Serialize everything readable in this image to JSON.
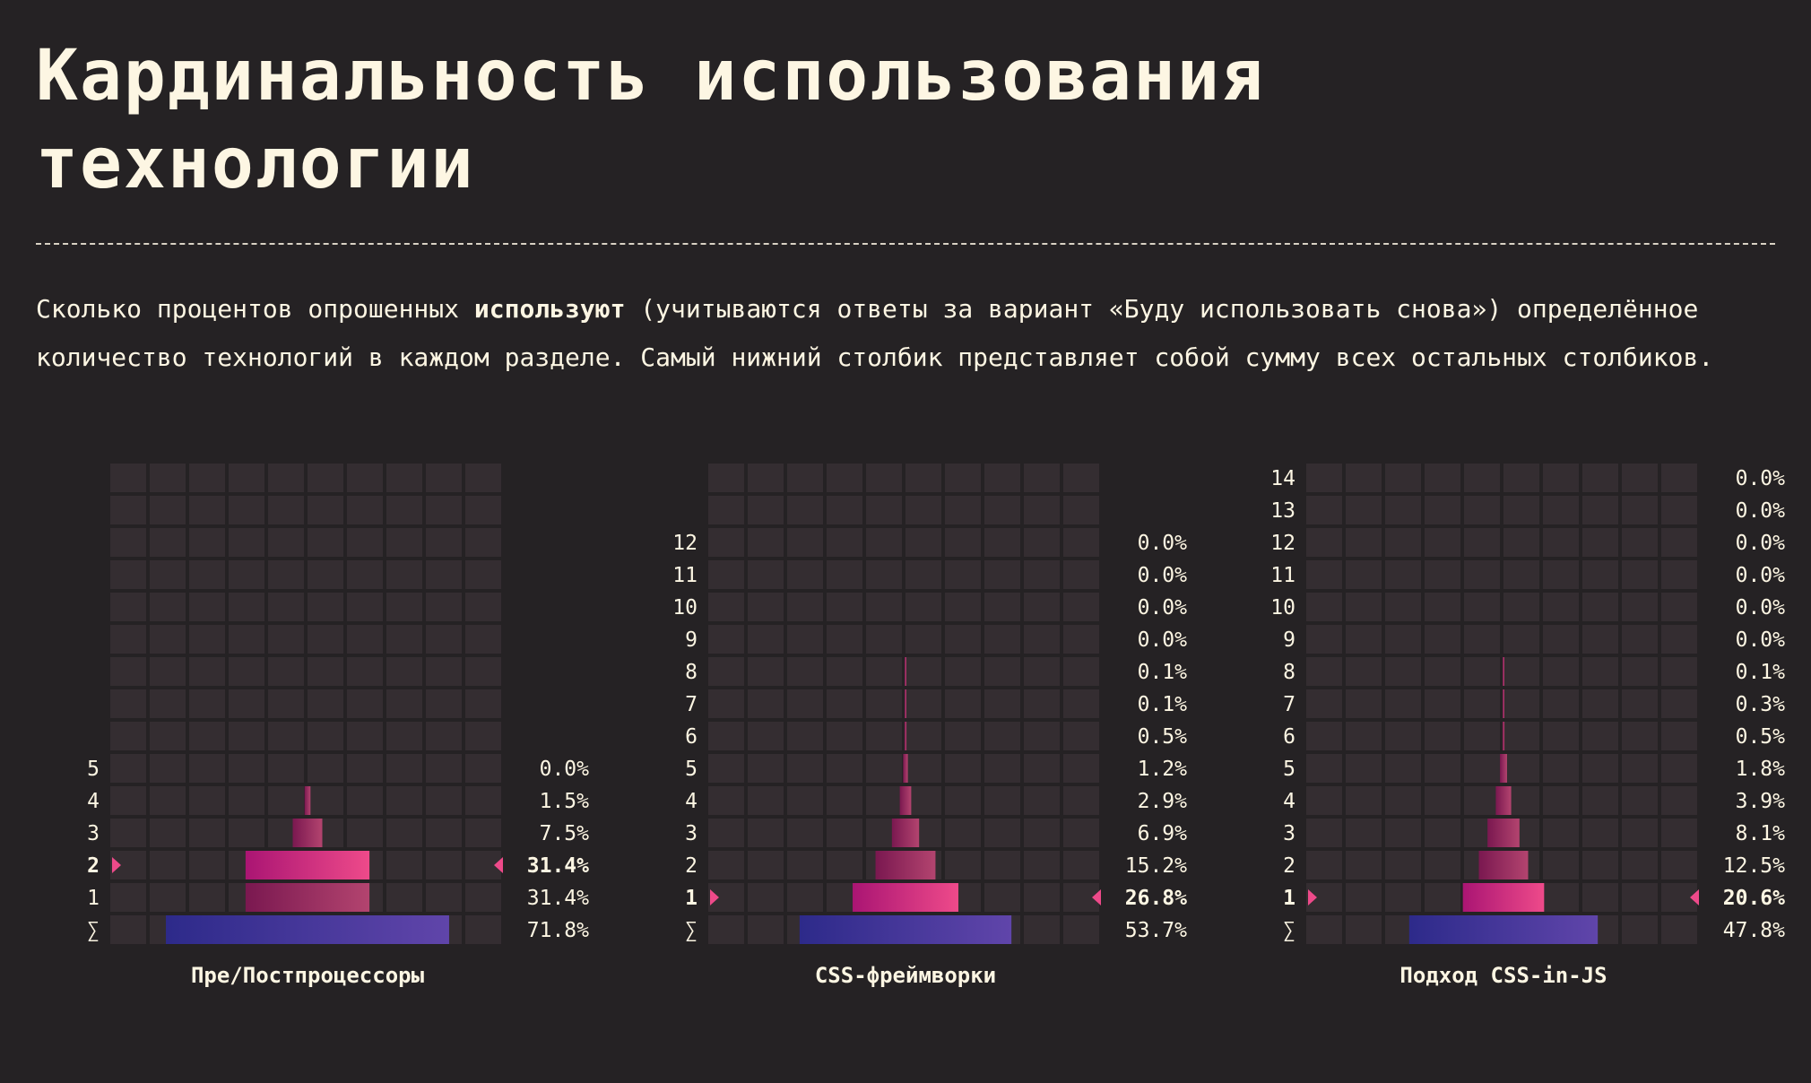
{
  "header": {
    "title": "Кардинальность использования технологии",
    "desc_pre": "Сколько процентов опрошенных ",
    "desc_bold": "используют",
    "desc_post": " (учитываются ответы за вариант «Буду использовать снова») определённое количество технологий в каждом разделе. Самый нижний столбик представляет собой сумму всех остальных столбиков."
  },
  "colors": {
    "background": "#252224",
    "cell": "#342d31",
    "text": "#fdf6e3",
    "bar_pink_start": "#aa1573",
    "bar_pink_end": "#ee4a8a",
    "bar_dark_start": "#7a1850",
    "bar_dark_end": "#b3446f",
    "sum_start": "#2d2a8a",
    "sum_end": "#6045aa",
    "marker": "#ee4a8a"
  },
  "chart_data": [
    {
      "type": "bar",
      "title": "Пре/Постпроцессоры",
      "rows": [
        {
          "label": "5",
          "value": 0.0,
          "display": "0.0%"
        },
        {
          "label": "4",
          "value": 1.5,
          "display": "1.5%"
        },
        {
          "label": "3",
          "value": 7.5,
          "display": "7.5%"
        },
        {
          "label": "2",
          "value": 31.4,
          "display": "31.4%",
          "highlight": true
        },
        {
          "label": "1",
          "value": 31.4,
          "display": "31.4%"
        }
      ],
      "sum": {
        "label": "∑",
        "value": 71.8,
        "display": "71.8%"
      }
    },
    {
      "type": "bar",
      "title": "CSS-фреймворки",
      "rows": [
        {
          "label": "12",
          "value": 0.0,
          "display": "0.0%"
        },
        {
          "label": "11",
          "value": 0.0,
          "display": "0.0%"
        },
        {
          "label": "10",
          "value": 0.0,
          "display": "0.0%"
        },
        {
          "label": "9",
          "value": 0.0,
          "display": "0.0%"
        },
        {
          "label": "8",
          "value": 0.1,
          "display": "0.1%"
        },
        {
          "label": "7",
          "value": 0.1,
          "display": "0.1%"
        },
        {
          "label": "6",
          "value": 0.5,
          "display": "0.5%"
        },
        {
          "label": "5",
          "value": 1.2,
          "display": "1.2%"
        },
        {
          "label": "4",
          "value": 2.9,
          "display": "2.9%"
        },
        {
          "label": "3",
          "value": 6.9,
          "display": "6.9%"
        },
        {
          "label": "2",
          "value": 15.2,
          "display": "15.2%"
        },
        {
          "label": "1",
          "value": 26.8,
          "display": "26.8%",
          "highlight": true
        }
      ],
      "sum": {
        "label": "∑",
        "value": 53.7,
        "display": "53.7%"
      }
    },
    {
      "type": "bar",
      "title": "Подход CSS-in-JS",
      "rows": [
        {
          "label": "14",
          "value": 0.0,
          "display": "0.0%"
        },
        {
          "label": "13",
          "value": 0.0,
          "display": "0.0%"
        },
        {
          "label": "12",
          "value": 0.0,
          "display": "0.0%"
        },
        {
          "label": "11",
          "value": 0.0,
          "display": "0.0%"
        },
        {
          "label": "10",
          "value": 0.0,
          "display": "0.0%"
        },
        {
          "label": "9",
          "value": 0.0,
          "display": "0.0%"
        },
        {
          "label": "8",
          "value": 0.1,
          "display": "0.1%"
        },
        {
          "label": "7",
          "value": 0.3,
          "display": "0.3%"
        },
        {
          "label": "6",
          "value": 0.5,
          "display": "0.5%"
        },
        {
          "label": "5",
          "value": 1.8,
          "display": "1.8%"
        },
        {
          "label": "4",
          "value": 3.9,
          "display": "3.9%"
        },
        {
          "label": "3",
          "value": 8.1,
          "display": "8.1%"
        },
        {
          "label": "2",
          "value": 12.5,
          "display": "12.5%"
        },
        {
          "label": "1",
          "value": 20.6,
          "display": "20.6%",
          "highlight": true
        }
      ],
      "sum": {
        "label": "∑",
        "value": 47.8,
        "display": "47.8%"
      }
    }
  ]
}
